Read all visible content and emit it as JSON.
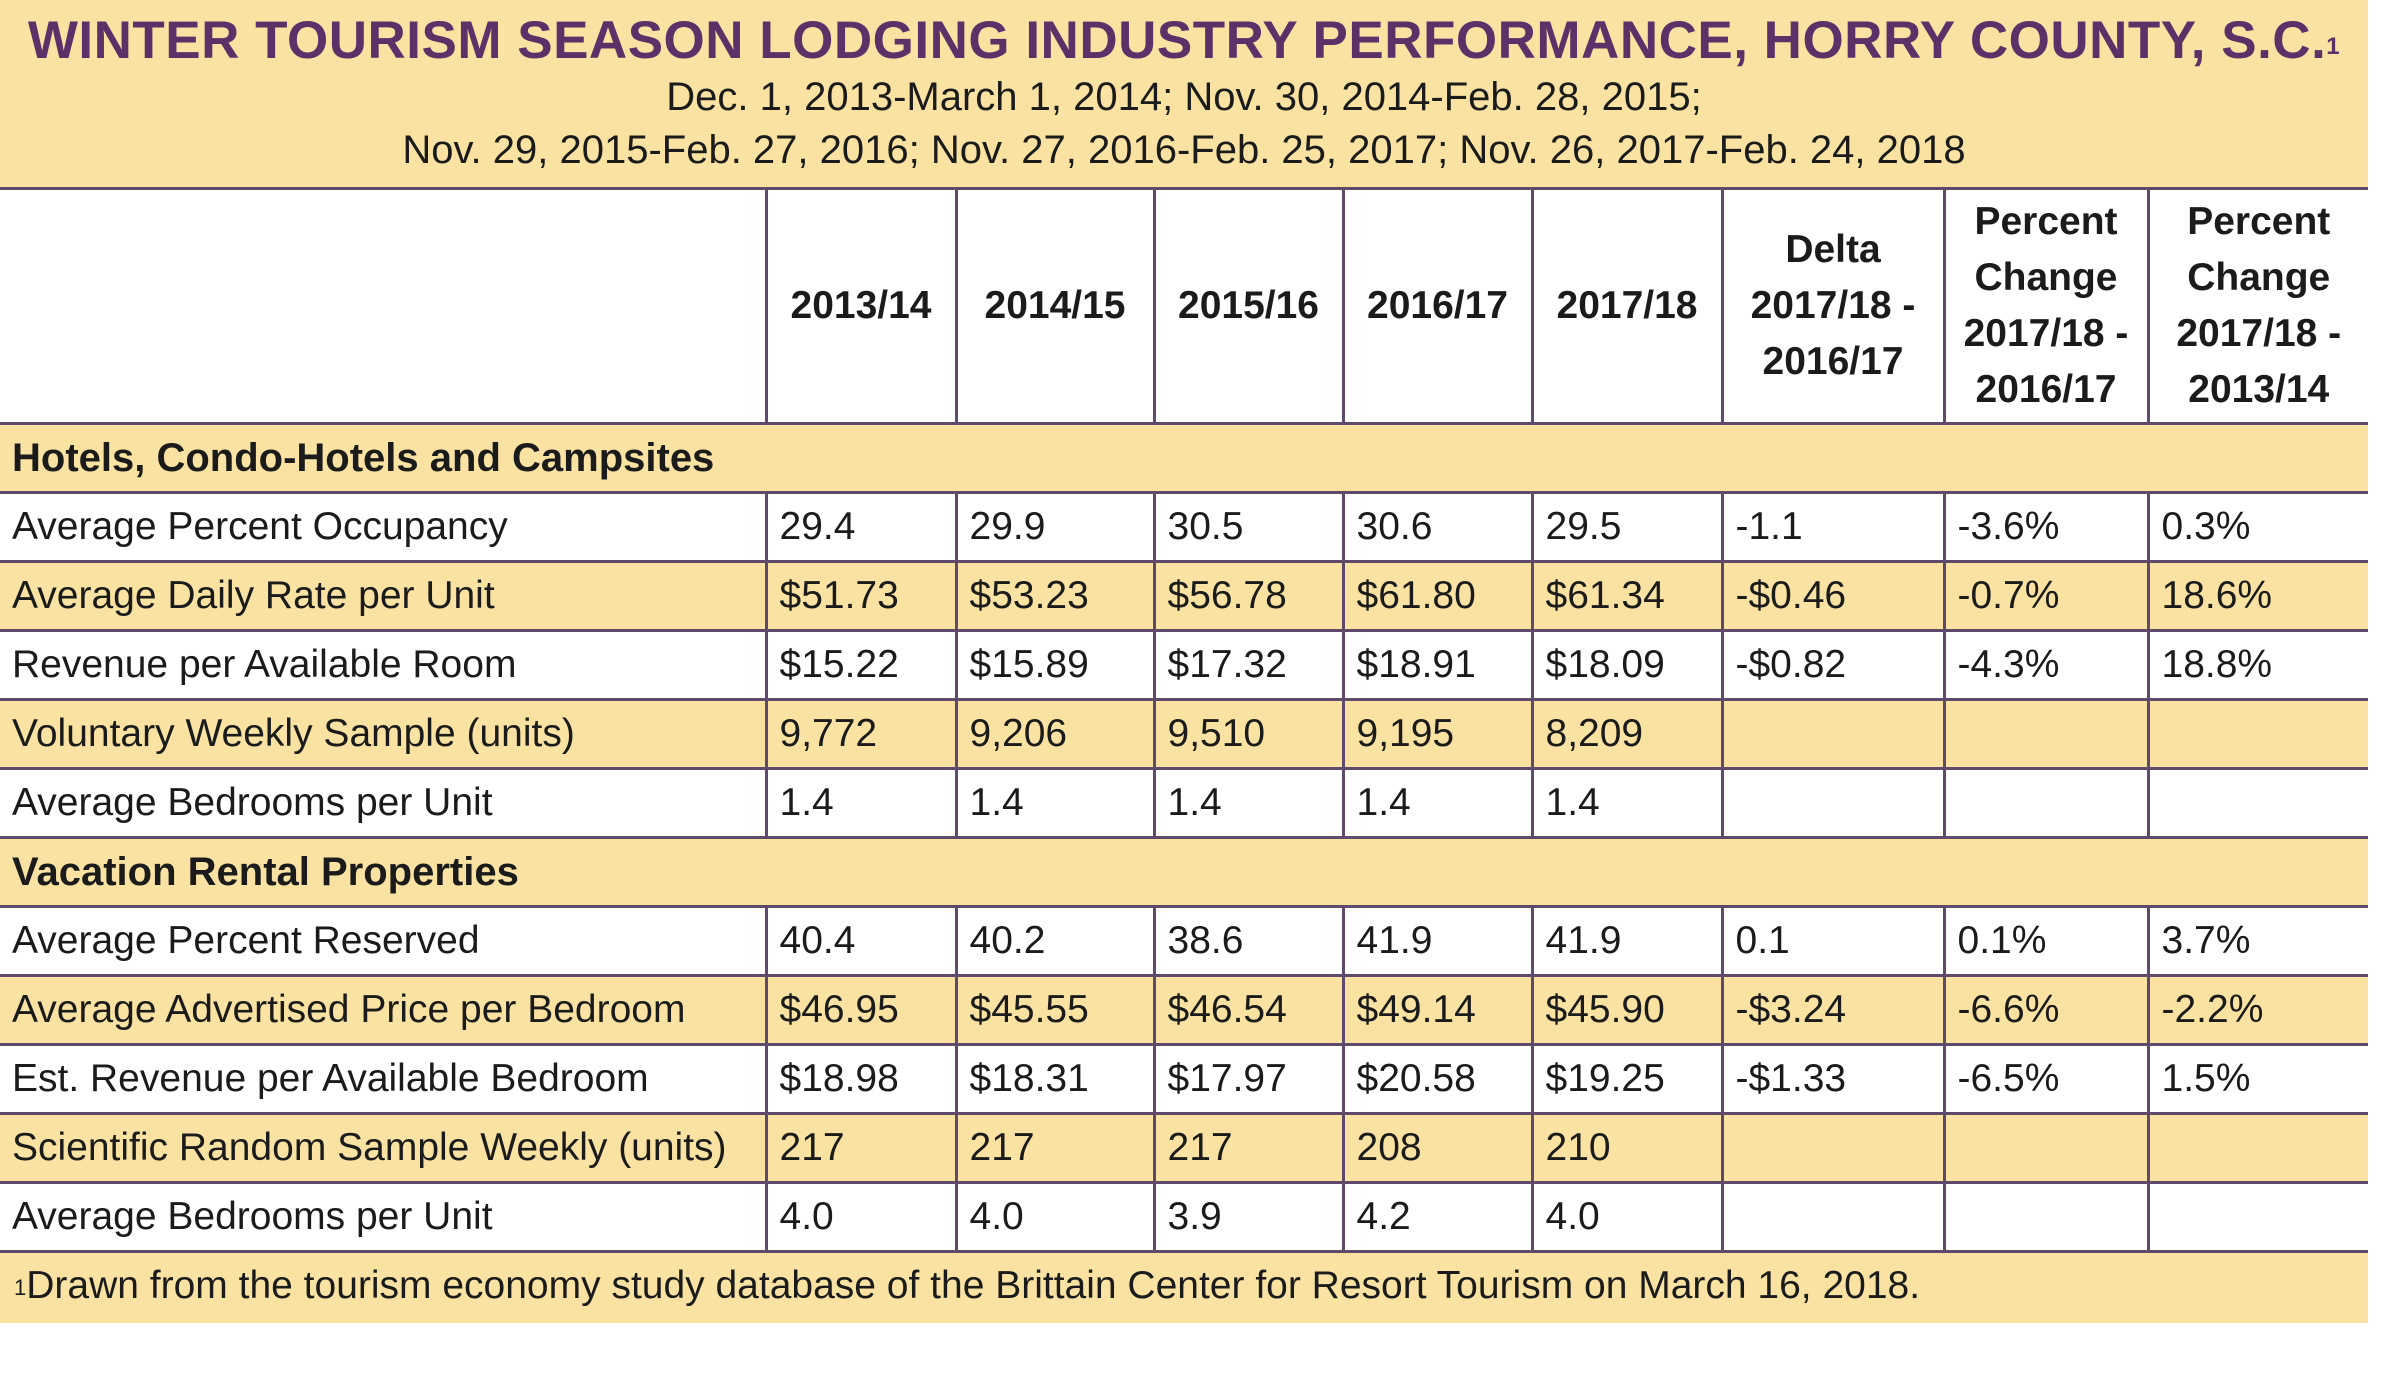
{
  "header": {
    "title": "WINTER TOURISM SEASON LODGING INDUSTRY PERFORMANCE, HORRY COUNTY, S.C.",
    "title_footnote_mark": "1",
    "subtitle_line1": "Dec. 1, 2013-March 1, 2014; Nov. 30, 2014-Feb. 28, 2015;",
    "subtitle_line2": "Nov. 29, 2015-Feb. 27, 2016; Nov. 27, 2016-Feb. 25, 2017; Nov. 26, 2017-Feb. 24, 2018"
  },
  "columns": [
    "",
    "2013/14",
    "2014/15",
    "2015/16",
    "2016/17",
    "2017/18",
    "Delta 2017/18 - 2016/17",
    "Percent Change 2017/18 - 2016/17",
    "Percent Change 2017/18 - 2013/14"
  ],
  "sections": [
    {
      "title": "Hotels, Condo-Hotels and Campsites",
      "rows": [
        [
          "Average Percent Occupancy",
          "29.4",
          "29.9",
          "30.5",
          "30.6",
          "29.5",
          "-1.1",
          "-3.6%",
          "0.3%"
        ],
        [
          "Average Daily Rate per Unit",
          "$51.73",
          "$53.23",
          "$56.78",
          "$61.80",
          "$61.34",
          "-$0.46",
          "-0.7%",
          "18.6%"
        ],
        [
          "Revenue per Available Room",
          "$15.22",
          "$15.89",
          "$17.32",
          "$18.91",
          "$18.09",
          "-$0.82",
          "-4.3%",
          "18.8%"
        ],
        [
          "Voluntary Weekly Sample (units)",
          "9,772",
          "9,206",
          "9,510",
          "9,195",
          "8,209",
          "",
          "",
          ""
        ],
        [
          "Average Bedrooms per Unit",
          "1.4",
          "1.4",
          "1.4",
          "1.4",
          "1.4",
          "",
          "",
          ""
        ]
      ]
    },
    {
      "title": "Vacation Rental Properties",
      "rows": [
        [
          "Average Percent Reserved",
          "40.4",
          "40.2",
          "38.6",
          "41.9",
          "41.9",
          "0.1",
          "0.1%",
          "3.7%"
        ],
        [
          "Average Advertised Price per Bedroom",
          "$46.95",
          "$45.55",
          "$46.54",
          "$49.14",
          "$45.90",
          "-$3.24",
          "-6.6%",
          "-2.2%"
        ],
        [
          "Est. Revenue per Available Bedroom",
          "$18.98",
          "$18.31",
          "$17.97",
          "$20.58",
          "$19.25",
          "-$1.33",
          "-6.5%",
          "1.5%"
        ],
        [
          "Scientific Random Sample Weekly (units)",
          "217",
          "217",
          "217",
          "208",
          "210",
          "",
          "",
          ""
        ],
        [
          "Average Bedrooms per Unit",
          "4.0",
          "4.0",
          "3.9",
          "4.2",
          "4.0",
          "",
          "",
          ""
        ]
      ]
    }
  ],
  "footnote": {
    "mark": "1",
    "text": "Drawn from the tourism economy study database of the Brittain Center for Resort Tourism on March 16, 2018."
  }
}
